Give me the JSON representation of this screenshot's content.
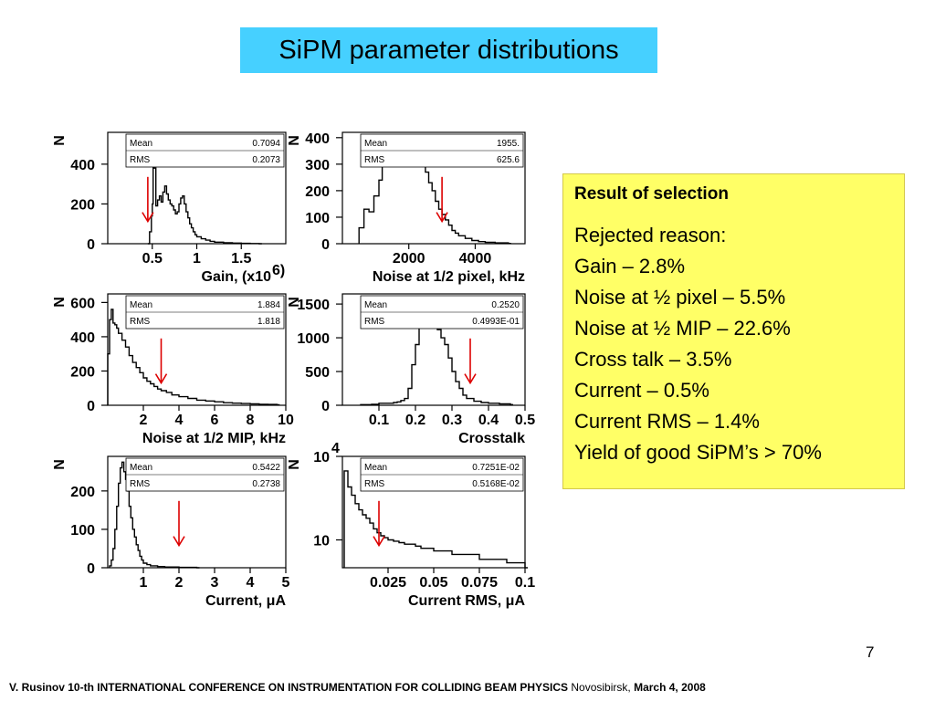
{
  "slide": {
    "title": "SiPM parameter distributions",
    "page_number": "7",
    "footer": {
      "part1": "V. Rusinov 10-th INTERNATIONAL CONFERENCE ON INSTRUMENTATION FOR COLLIDING BEAM PHYSICS",
      "part2": "Novosibirsk,",
      "part3": "March 4, 2008"
    }
  },
  "result": {
    "heading": "Result of selection",
    "lines": [
      "Rejected reason:",
      "Gain – 2.8%",
      "Noise at ½ pixel – 5.5%",
      "Noise at ½ MIP – 22.6%",
      "Cross talk – 3.5%",
      "Current – 0.5%",
      "Current RMS – 1.4%",
      "Yield of good SiPM’s > 70%"
    ]
  },
  "colors": {
    "title_bg": "#46d0ff",
    "result_bg": "#ffff66",
    "arrow": "#dd0000",
    "hist": "#000000"
  },
  "chart_data": [
    {
      "type": "histogram",
      "xlabel": "Gain, (x10",
      "xlabel_sup": "6)",
      "ylabel": "N",
      "xlim": [
        0,
        2
      ],
      "ylim": [
        0,
        560
      ],
      "xticks": [
        {
          "v": 0.5,
          "label": "0.5"
        },
        {
          "v": 1,
          "label": "1"
        },
        {
          "v": 1.5,
          "label": "1.5"
        }
      ],
      "yticks": [
        {
          "v": 0,
          "label": "0"
        },
        {
          "v": 200,
          "label": "200"
        },
        {
          "v": 400,
          "label": "400"
        }
      ],
      "stats": {
        "mean_label": "Mean",
        "mean": "0.7094",
        "rms_label": "RMS",
        "rms": "0.2073"
      },
      "cut": 0.45,
      "points": [
        [
          0.45,
          0
        ],
        [
          0.47,
          60
        ],
        [
          0.49,
          140
        ],
        [
          0.5,
          200
        ],
        [
          0.51,
          540
        ],
        [
          0.52,
          380
        ],
        [
          0.54,
          190
        ],
        [
          0.56,
          220
        ],
        [
          0.58,
          240
        ],
        [
          0.6,
          210
        ],
        [
          0.62,
          260
        ],
        [
          0.64,
          290
        ],
        [
          0.66,
          250
        ],
        [
          0.68,
          220
        ],
        [
          0.7,
          200
        ],
        [
          0.72,
          190
        ],
        [
          0.74,
          170
        ],
        [
          0.76,
          150
        ],
        [
          0.78,
          160
        ],
        [
          0.8,
          200
        ],
        [
          0.82,
          230
        ],
        [
          0.84,
          240
        ],
        [
          0.86,
          200
        ],
        [
          0.88,
          160
        ],
        [
          0.9,
          130
        ],
        [
          0.92,
          100
        ],
        [
          0.94,
          80
        ],
        [
          0.96,
          60
        ],
        [
          0.98,
          45
        ],
        [
          1.0,
          35
        ],
        [
          1.05,
          25
        ],
        [
          1.1,
          18
        ],
        [
          1.15,
          12
        ],
        [
          1.2,
          8
        ],
        [
          1.3,
          5
        ],
        [
          1.4,
          3
        ],
        [
          1.5,
          2
        ],
        [
          1.6,
          1
        ],
        [
          1.7,
          0
        ]
      ]
    },
    {
      "type": "histogram",
      "xlabel": "Noise at 1/2 pixel, kHz",
      "ylabel": "N",
      "xlim": [
        0,
        5500
      ],
      "ylim": [
        0,
        420
      ],
      "xticks": [
        {
          "v": 2000,
          "label": "2000"
        },
        {
          "v": 4000,
          "label": "4000"
        }
      ],
      "yticks": [
        {
          "v": 0,
          "label": "0"
        },
        {
          "v": 100,
          "label": "100"
        },
        {
          "v": 200,
          "label": "200"
        },
        {
          "v": 300,
          "label": "300"
        },
        {
          "v": 400,
          "label": "400"
        }
      ],
      "stats": {
        "mean_label": "Mean",
        "mean": "1955.",
        "rms_label": "RMS",
        "rms": "625.6"
      },
      "cut": 3000,
      "points": [
        [
          500,
          60
        ],
        [
          650,
          130
        ],
        [
          800,
          120
        ],
        [
          950,
          180
        ],
        [
          1100,
          240
        ],
        [
          1200,
          300
        ],
        [
          1300,
          360
        ],
        [
          1400,
          380
        ],
        [
          1500,
          410
        ],
        [
          1600,
          390
        ],
        [
          1700,
          410
        ],
        [
          1800,
          380
        ],
        [
          1900,
          390
        ],
        [
          2000,
          370
        ],
        [
          2100,
          350
        ],
        [
          2200,
          340
        ],
        [
          2300,
          320
        ],
        [
          2400,
          310
        ],
        [
          2500,
          270
        ],
        [
          2600,
          230
        ],
        [
          2700,
          200
        ],
        [
          2800,
          160
        ],
        [
          2900,
          130
        ],
        [
          3000,
          110
        ],
        [
          3100,
          90
        ],
        [
          3200,
          70
        ],
        [
          3300,
          50
        ],
        [
          3400,
          40
        ],
        [
          3500,
          30
        ],
        [
          3700,
          20
        ],
        [
          3900,
          12
        ],
        [
          4100,
          8
        ],
        [
          4300,
          5
        ],
        [
          4600,
          3
        ],
        [
          5000,
          1
        ]
      ]
    },
    {
      "type": "histogram",
      "xlabel": "Noise at 1/2 MIP, kHz",
      "ylabel": "N",
      "xlim": [
        0,
        10
      ],
      "ylim": [
        0,
        650
      ],
      "xticks": [
        {
          "v": 2,
          "label": "2"
        },
        {
          "v": 4,
          "label": "4"
        },
        {
          "v": 6,
          "label": "6"
        },
        {
          "v": 8,
          "label": "8"
        },
        {
          "v": 10,
          "label": "10"
        }
      ],
      "yticks": [
        {
          "v": 0,
          "label": "0"
        },
        {
          "v": 200,
          "label": "200"
        },
        {
          "v": 400,
          "label": "400"
        },
        {
          "v": 600,
          "label": "600"
        }
      ],
      "stats": {
        "mean_label": "Mean",
        "mean": "1.884",
        "rms_label": "RMS",
        "rms": "1.818"
      },
      "cut": 3,
      "points": [
        [
          0,
          300
        ],
        [
          0.1,
          500
        ],
        [
          0.2,
          560
        ],
        [
          0.3,
          480
        ],
        [
          0.4,
          470
        ],
        [
          0.5,
          450
        ],
        [
          0.6,
          420
        ],
        [
          0.8,
          380
        ],
        [
          1.0,
          340
        ],
        [
          1.2,
          290
        ],
        [
          1.4,
          250
        ],
        [
          1.6,
          220
        ],
        [
          1.8,
          190
        ],
        [
          2.0,
          160
        ],
        [
          2.2,
          140
        ],
        [
          2.4,
          125
        ],
        [
          2.6,
          110
        ],
        [
          2.8,
          95
        ],
        [
          3.0,
          85
        ],
        [
          3.3,
          75
        ],
        [
          3.6,
          60
        ],
        [
          4.0,
          50
        ],
        [
          4.5,
          40
        ],
        [
          5.0,
          30
        ],
        [
          5.5,
          25
        ],
        [
          6.0,
          20
        ],
        [
          6.5,
          15
        ],
        [
          7.0,
          12
        ],
        [
          7.5,
          10
        ],
        [
          8.0,
          8
        ],
        [
          8.5,
          6
        ],
        [
          9.0,
          5
        ],
        [
          9.5,
          3
        ]
      ]
    },
    {
      "type": "histogram",
      "xlabel": "Crosstalk",
      "ylabel": "N",
      "xlim": [
        0,
        0.5
      ],
      "ylim": [
        0,
        1650
      ],
      "xticks": [
        {
          "v": 0.1,
          "label": "0.1"
        },
        {
          "v": 0.2,
          "label": "0.2"
        },
        {
          "v": 0.3,
          "label": "0.3"
        },
        {
          "v": 0.4,
          "label": "0.4"
        },
        {
          "v": 0.5,
          "label": "0.5"
        }
      ],
      "yticks": [
        {
          "v": 0,
          "label": "0"
        },
        {
          "v": 500,
          "label": "500"
        },
        {
          "v": 1000,
          "label": "1000"
        },
        {
          "v": 1500,
          "label": "1500"
        }
      ],
      "stats": {
        "mean_label": "Mean",
        "mean": "0.2520",
        "rms_label": "RMS",
        "rms": "0.4993E-01"
      },
      "cut": 0.35,
      "points": [
        [
          0.05,
          10
        ],
        [
          0.08,
          15
        ],
        [
          0.1,
          30
        ],
        [
          0.12,
          30
        ],
        [
          0.14,
          40
        ],
        [
          0.15,
          50
        ],
        [
          0.16,
          70
        ],
        [
          0.17,
          100
        ],
        [
          0.18,
          250
        ],
        [
          0.19,
          600
        ],
        [
          0.2,
          900
        ],
        [
          0.21,
          1150
        ],
        [
          0.22,
          1350
        ],
        [
          0.23,
          1420
        ],
        [
          0.24,
          1350
        ],
        [
          0.25,
          1250
        ],
        [
          0.26,
          1120
        ],
        [
          0.27,
          1000
        ],
        [
          0.28,
          900
        ],
        [
          0.29,
          700
        ],
        [
          0.3,
          500
        ],
        [
          0.31,
          350
        ],
        [
          0.32,
          250
        ],
        [
          0.33,
          150
        ],
        [
          0.34,
          100
        ],
        [
          0.36,
          60
        ],
        [
          0.38,
          40
        ],
        [
          0.4,
          30
        ],
        [
          0.43,
          20
        ],
        [
          0.46,
          10
        ]
      ]
    },
    {
      "type": "histogram",
      "xlabel": "Current, ",
      "xlabel_unit": "μA",
      "ylabel": "N",
      "xlim": [
        0,
        5
      ],
      "ylim": [
        0,
        290
      ],
      "xticks": [
        {
          "v": 1,
          "label": "1"
        },
        {
          "v": 2,
          "label": "2"
        },
        {
          "v": 3,
          "label": "3"
        },
        {
          "v": 4,
          "label": "4"
        },
        {
          "v": 5,
          "label": "5"
        }
      ],
      "yticks": [
        {
          "v": 0,
          "label": "0"
        },
        {
          "v": 100,
          "label": "100"
        },
        {
          "v": 200,
          "label": "200"
        }
      ],
      "stats": {
        "mean_label": "Mean",
        "mean": "0.5422",
        "rms_label": "RMS",
        "rms": "0.2738"
      },
      "cut": 2,
      "points": [
        [
          0.05,
          5
        ],
        [
          0.1,
          20
        ],
        [
          0.15,
          50
        ],
        [
          0.2,
          100
        ],
        [
          0.25,
          160
        ],
        [
          0.3,
          220
        ],
        [
          0.35,
          260
        ],
        [
          0.4,
          275
        ],
        [
          0.45,
          250
        ],
        [
          0.5,
          230
        ],
        [
          0.55,
          200
        ],
        [
          0.6,
          160
        ],
        [
          0.65,
          130
        ],
        [
          0.7,
          100
        ],
        [
          0.75,
          80
        ],
        [
          0.8,
          60
        ],
        [
          0.85,
          45
        ],
        [
          0.9,
          30
        ],
        [
          0.95,
          20
        ],
        [
          1.0,
          12
        ],
        [
          1.1,
          8
        ],
        [
          1.2,
          5
        ],
        [
          1.4,
          3
        ],
        [
          1.6,
          2
        ],
        [
          2.0,
          1
        ],
        [
          2.5,
          0
        ]
      ]
    },
    {
      "type": "histogram",
      "xlabel": "Current RMS, ",
      "xlabel_unit": "μA",
      "ylabel": "N",
      "log_y": true,
      "xlim": [
        0,
        0.1
      ],
      "ylim": [
        1,
        10000
      ],
      "xticks": [
        {
          "v": 0.025,
          "label": "0.025"
        },
        {
          "v": 0.05,
          "label": "0.05"
        },
        {
          "v": 0.075,
          "label": "0.075"
        },
        {
          "v": 0.1,
          "label": "0.1"
        }
      ],
      "yticks": [
        {
          "v": 10,
          "label": "10"
        },
        {
          "v": 10000,
          "label": "10",
          "sup": "4"
        }
      ],
      "stats": {
        "mean_label": "Mean",
        "mean": "0.7251E-02",
        "rms_label": "RMS",
        "rms": "0.5168E-02"
      },
      "cut": 0.02,
      "points": [
        [
          0.001,
          3000
        ],
        [
          0.003,
          800
        ],
        [
          0.005,
          400
        ],
        [
          0.007,
          200
        ],
        [
          0.009,
          120
        ],
        [
          0.011,
          80
        ],
        [
          0.013,
          60
        ],
        [
          0.015,
          40
        ],
        [
          0.017,
          25
        ],
        [
          0.019,
          18
        ],
        [
          0.021,
          14
        ],
        [
          0.023,
          12
        ],
        [
          0.025,
          10
        ],
        [
          0.028,
          9
        ],
        [
          0.031,
          8
        ],
        [
          0.034,
          7
        ],
        [
          0.037,
          7
        ],
        [
          0.04,
          6
        ],
        [
          0.043,
          5
        ],
        [
          0.046,
          5
        ],
        [
          0.05,
          4
        ],
        [
          0.055,
          4
        ],
        [
          0.06,
          3
        ],
        [
          0.065,
          3
        ],
        [
          0.07,
          3
        ],
        [
          0.075,
          2
        ],
        [
          0.08,
          2
        ],
        [
          0.085,
          2
        ],
        [
          0.09,
          1.5
        ],
        [
          0.095,
          1.5
        ],
        [
          0.1,
          1
        ]
      ]
    }
  ]
}
